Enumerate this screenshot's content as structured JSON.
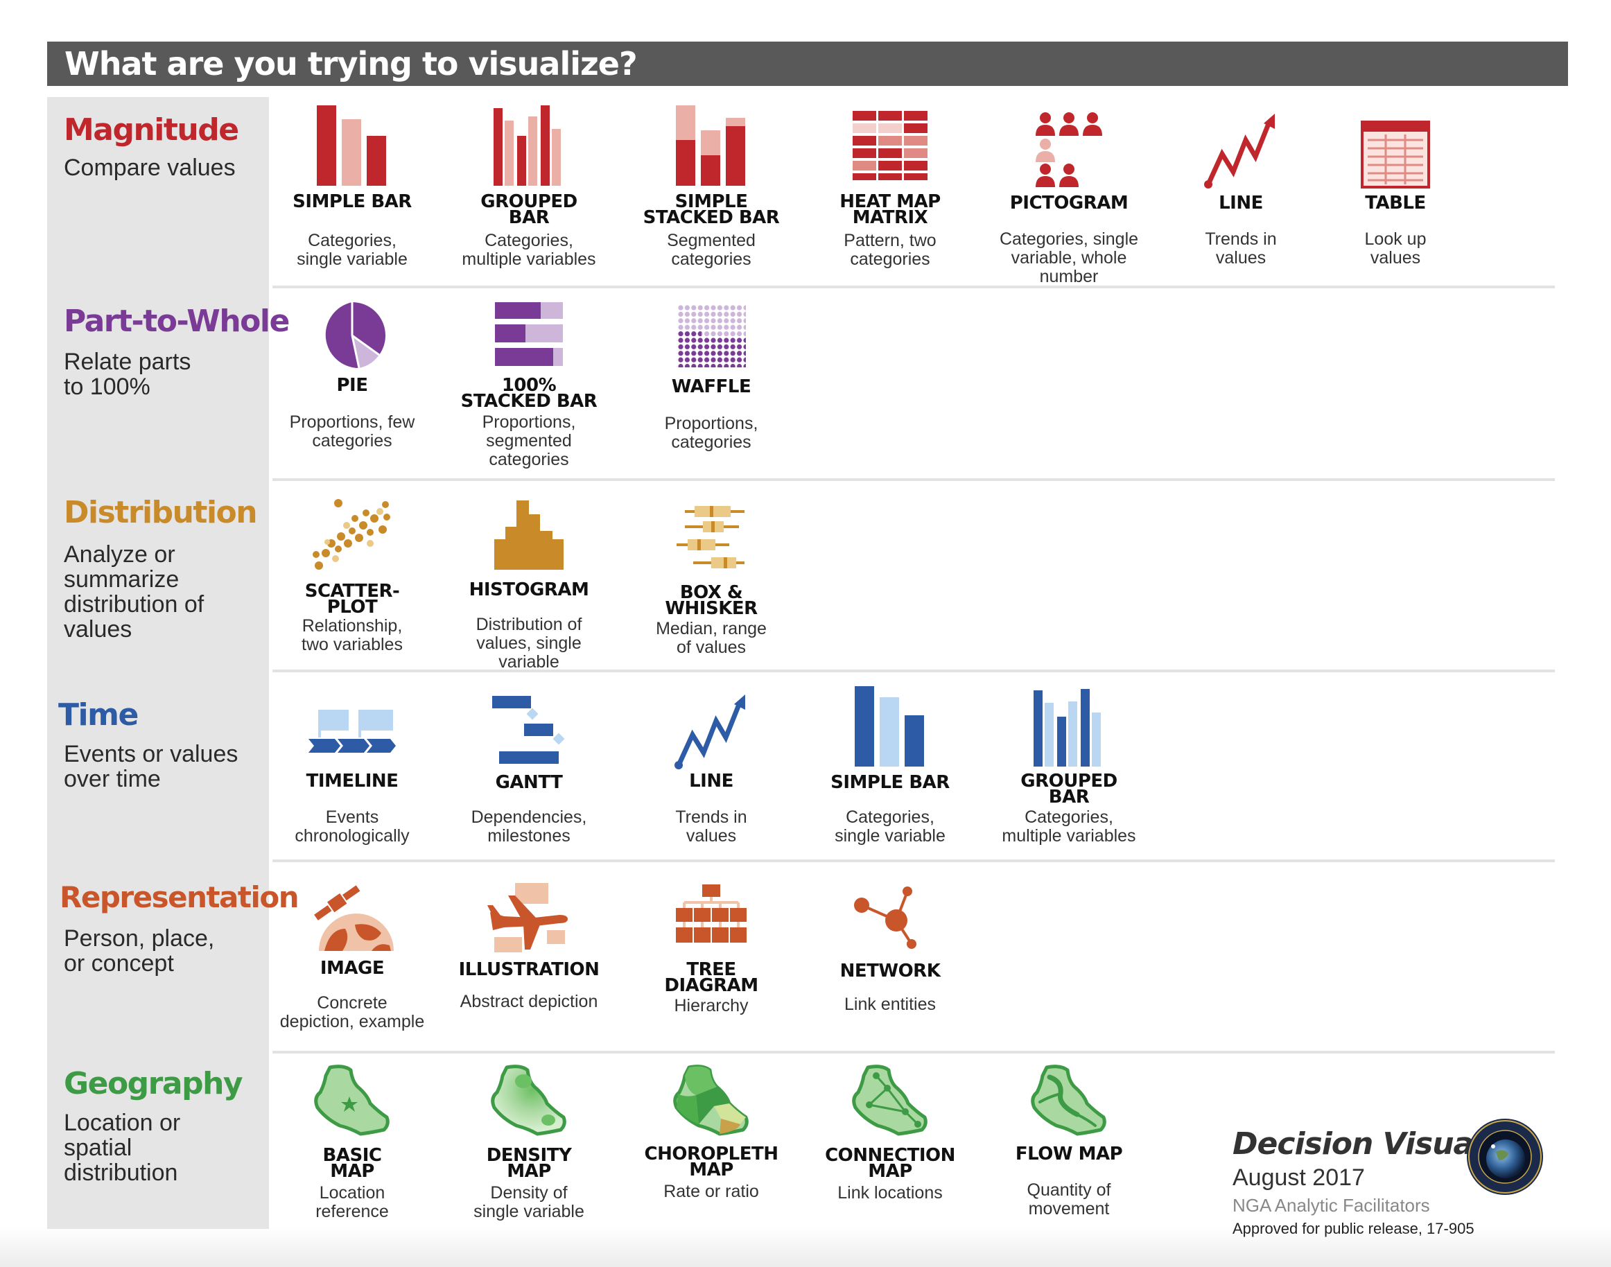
{
  "title": "What are you trying to visualize?",
  "colors": {
    "magnitude": "#c0272d",
    "part_to_whole": "#7a3b96",
    "distribution": "#c98b2a",
    "time": "#2d5ba6",
    "representation": "#c9562b",
    "geography": "#3d9b45"
  },
  "categories": {
    "magnitude": {
      "name": "Magnitude",
      "desc": "Compare values"
    },
    "part_to_whole": {
      "name": "Part-to-Whole",
      "desc": "Relate parts\nto 100%"
    },
    "distribution": {
      "name": "Distribution",
      "desc": "Analyze or\nsummarize\ndistribution of\nvalues"
    },
    "time": {
      "name": "Time",
      "desc": "Events or values\nover time"
    },
    "representation": {
      "name": "Representation",
      "desc": "Person, place,\nor concept"
    },
    "geography": {
      "name": "Geography",
      "desc": "Location or\nspatial\ndistribution"
    }
  },
  "items": {
    "mag_simple_bar": {
      "name": "SIMPLE BAR",
      "desc": "Categories,\nsingle variable",
      "icon": "simple-bar-icon"
    },
    "mag_grouped_bar": {
      "name": "GROUPED\nBAR",
      "desc": "Categories,\nmultiple variables",
      "icon": "grouped-bar-icon"
    },
    "mag_stacked_bar": {
      "name": "SIMPLE\nSTACKED BAR",
      "desc": "Segmented\ncategories",
      "icon": "stacked-bar-icon"
    },
    "mag_heat_map": {
      "name": "HEAT MAP\nMATRIX",
      "desc": "Pattern, two\ncategories",
      "icon": "heat-map-icon"
    },
    "mag_pictogram": {
      "name": "PICTOGRAM",
      "desc": "Categories, single\nvariable, whole\nnumber",
      "icon": "pictogram-icon"
    },
    "mag_line": {
      "name": "LINE",
      "desc": "Trends in\nvalues",
      "icon": "line-chart-icon"
    },
    "mag_table": {
      "name": "TABLE",
      "desc": "Look up\nvalues",
      "icon": "table-icon"
    },
    "ptw_pie": {
      "name": "PIE",
      "desc": "Proportions, few\ncategories",
      "icon": "pie-chart-icon"
    },
    "ptw_100_stacked": {
      "name": "100%\nSTACKED BAR",
      "desc": "Proportions,\nsegmented\ncategories",
      "icon": "stacked-100-icon"
    },
    "ptw_waffle": {
      "name": "WAFFLE",
      "desc": "Proportions,\ncategories",
      "icon": "waffle-icon"
    },
    "dist_scatter": {
      "name": "SCATTER-\nPLOT",
      "desc": "Relationship,\ntwo variables",
      "icon": "scatterplot-icon"
    },
    "dist_histogram": {
      "name": "HISTOGRAM",
      "desc": "Distribution of\nvalues, single\nvariable",
      "icon": "histogram-icon"
    },
    "dist_box": {
      "name": "BOX &\nWHISKER",
      "desc": "Median, range\nof values",
      "icon": "box-whisker-icon"
    },
    "time_timeline": {
      "name": "TIMELINE",
      "desc": "Events\nchronologically",
      "icon": "timeline-icon"
    },
    "time_gantt": {
      "name": "GANTT",
      "desc": "Dependencies,\nmilestones",
      "icon": "gantt-icon"
    },
    "time_line": {
      "name": "LINE",
      "desc": "Trends in\nvalues",
      "icon": "line-chart-icon"
    },
    "time_simple_bar": {
      "name": "SIMPLE BAR",
      "desc": "Categories,\nsingle variable",
      "icon": "simple-bar-icon"
    },
    "time_grouped_bar": {
      "name": "GROUPED\nBAR",
      "desc": "Categories,\nmultiple variables",
      "icon": "grouped-bar-icon"
    },
    "rep_image": {
      "name": "IMAGE",
      "desc": "Concrete\ndepiction, example",
      "icon": "satellite-image-icon"
    },
    "rep_illustration": {
      "name": "ILLUSTRATION",
      "desc": "Abstract depiction",
      "icon": "airplane-illustration-icon"
    },
    "rep_tree": {
      "name": "TREE\nDIAGRAM",
      "desc": "Hierarchy",
      "icon": "tree-diagram-icon"
    },
    "rep_network": {
      "name": "NETWORK",
      "desc": "Link entities",
      "icon": "network-icon"
    },
    "geo_basic": {
      "name": "BASIC\nMAP",
      "desc": "Location\nreference",
      "icon": "basic-map-icon"
    },
    "geo_density": {
      "name": "DENSITY\nMAP",
      "desc": "Density of\nsingle variable",
      "icon": "density-map-icon"
    },
    "geo_choropleth": {
      "name": "CHOROPLETH\nMAP",
      "desc": "Rate or ratio",
      "icon": "choropleth-map-icon"
    },
    "geo_connection": {
      "name": "CONNECTION\nMAP",
      "desc": "Link locations",
      "icon": "connection-map-icon"
    },
    "geo_flow": {
      "name": "FLOW MAP",
      "desc": "Quantity of\nmovement",
      "icon": "flow-map-icon"
    }
  },
  "footer": {
    "title": "Decision Visual",
    "date": "August 2017",
    "org": "NGA Analytic Facilitators",
    "approved": "Approved for public release, 17-905",
    "seal_icon": "nga-seal-icon"
  }
}
